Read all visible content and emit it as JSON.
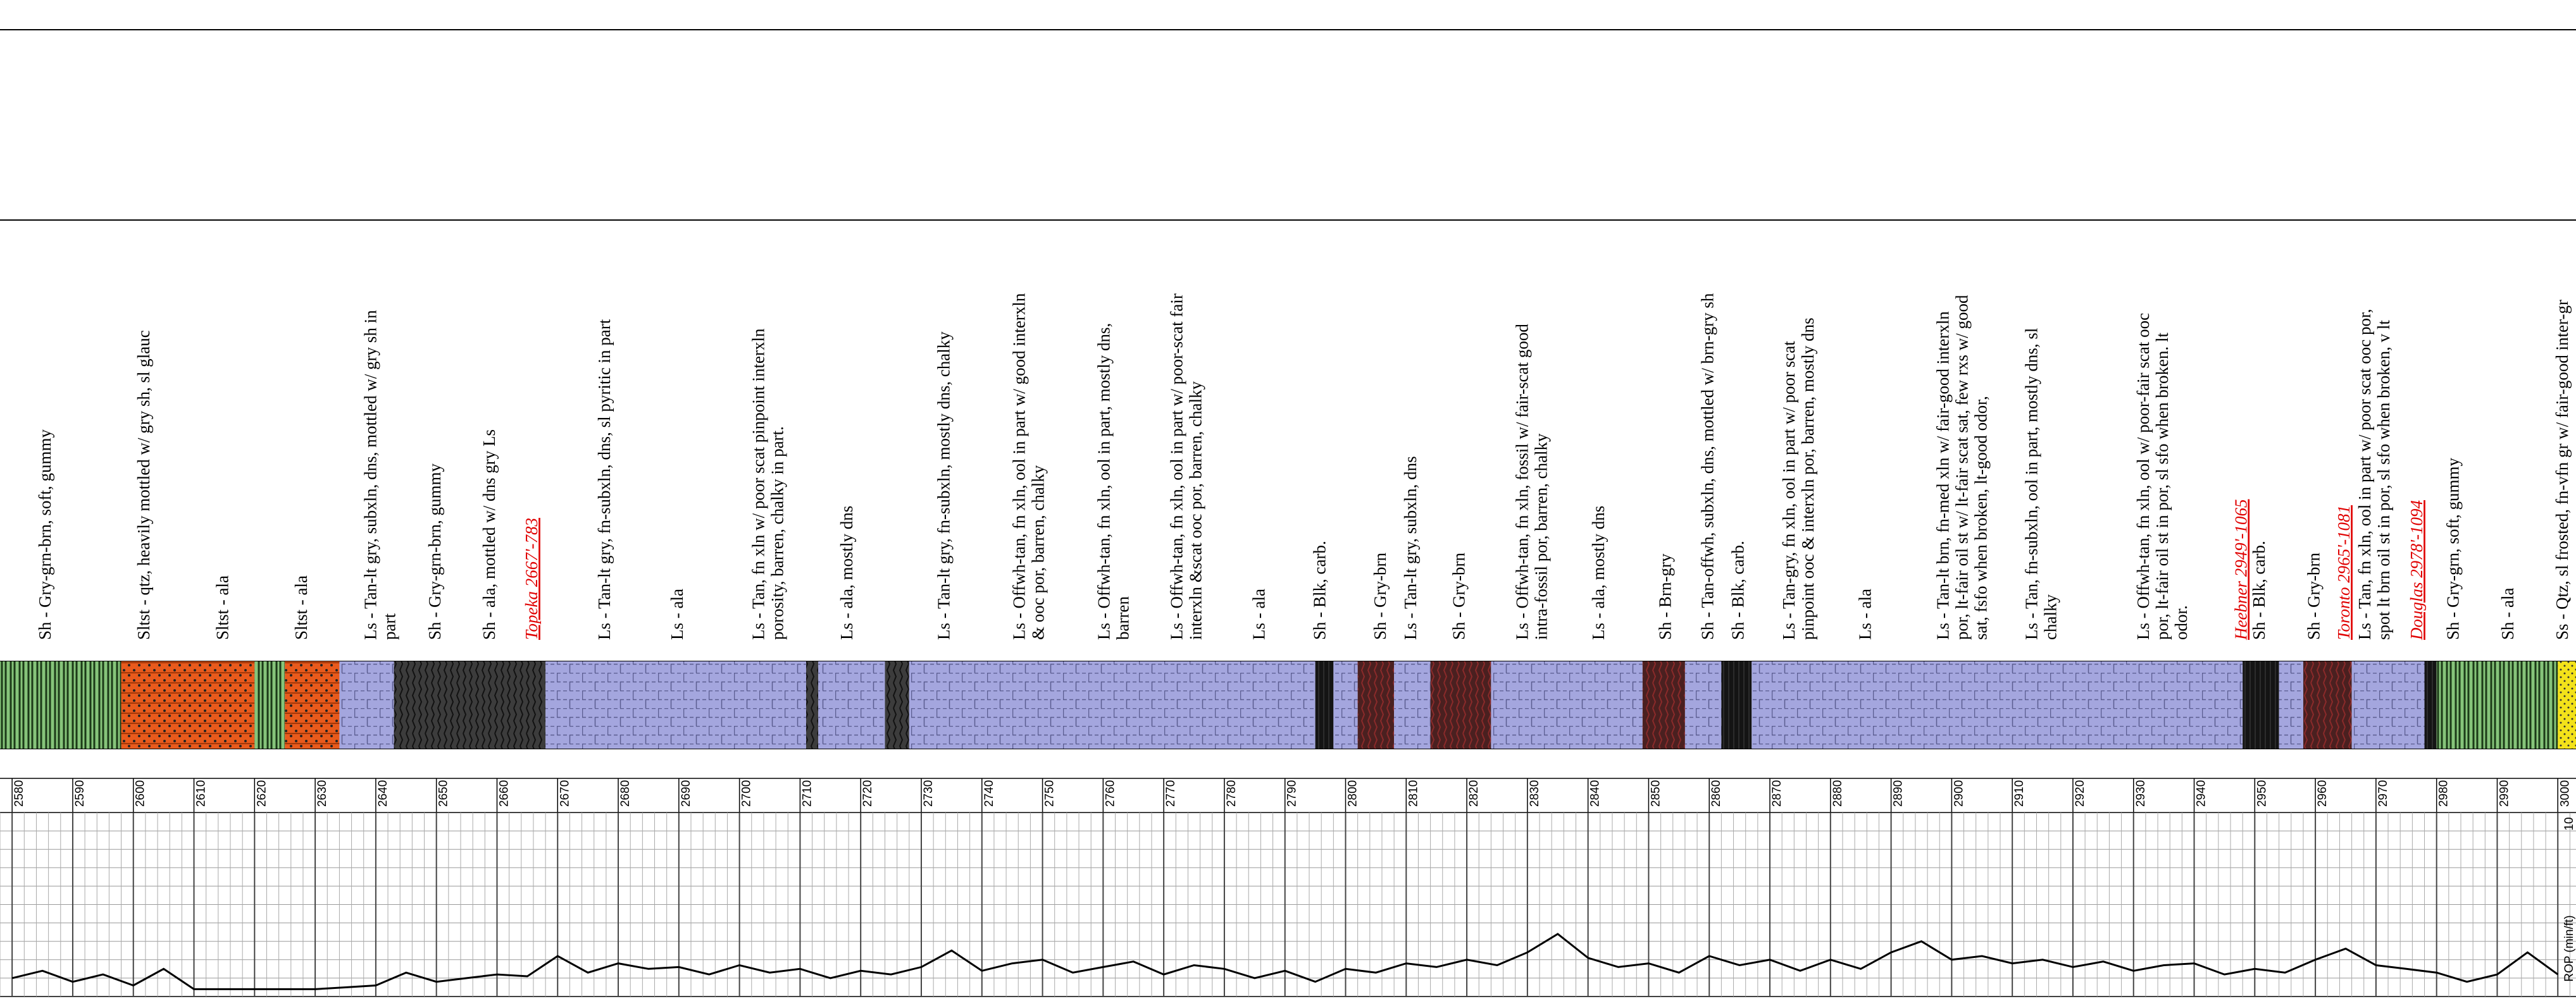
{
  "chart_data": {
    "type": "mud-log",
    "xlim": [
      2578,
      3003
    ],
    "xticks": [
      2580,
      2590,
      2600,
      2610,
      2620,
      2630,
      2640,
      2650,
      2660,
      2670,
      2680,
      2690,
      2700,
      2710,
      2720,
      2730,
      2740,
      2750,
      2760,
      2770,
      2780,
      2790,
      2800,
      2810,
      2820,
      2830,
      2840,
      2850,
      2860,
      2870,
      2880,
      2890,
      2900,
      2910,
      2920,
      2930,
      2940,
      2950,
      2960,
      2970,
      2980,
      2990,
      3000
    ],
    "lith_colors": {
      "ls": "#a4a6de",
      "sh": "#3c3c3c",
      "sh-grn": "#86c47a",
      "sh-brn": "#4a2020",
      "sh-blk": "#141414",
      "sltst": "#e85a1c",
      "ss": "#f3e21a"
    },
    "lithology": [
      {
        "from": 2578,
        "to": 2598,
        "lith": "sh-grn"
      },
      {
        "from": 2598,
        "to": 2620,
        "lith": "sltst"
      },
      {
        "from": 2620,
        "to": 2625,
        "lith": "sh-grn"
      },
      {
        "from": 2625,
        "to": 2634,
        "lith": "sltst"
      },
      {
        "from": 2634,
        "to": 2643,
        "lith": "ls"
      },
      {
        "from": 2643,
        "to": 2668,
        "lith": "sh"
      },
      {
        "from": 2668,
        "to": 2711,
        "lith": "ls"
      },
      {
        "from": 2711,
        "to": 2713,
        "lith": "sh"
      },
      {
        "from": 2713,
        "to": 2724,
        "lith": "ls"
      },
      {
        "from": 2724,
        "to": 2728,
        "lith": "sh"
      },
      {
        "from": 2728,
        "to": 2795,
        "lith": "ls"
      },
      {
        "from": 2795,
        "to": 2798,
        "lith": "sh-blk"
      },
      {
        "from": 2798,
        "to": 2802,
        "lith": "ls"
      },
      {
        "from": 2802,
        "to": 2808,
        "lith": "sh-brn"
      },
      {
        "from": 2808,
        "to": 2814,
        "lith": "ls"
      },
      {
        "from": 2814,
        "to": 2824,
        "lith": "sh-brn"
      },
      {
        "from": 2824,
        "to": 2849,
        "lith": "ls"
      },
      {
        "from": 2849,
        "to": 2856,
        "lith": "sh-brn"
      },
      {
        "from": 2856,
        "to": 2862,
        "lith": "ls"
      },
      {
        "from": 2862,
        "to": 2867,
        "lith": "sh-blk"
      },
      {
        "from": 2867,
        "to": 2948,
        "lith": "ls"
      },
      {
        "from": 2948,
        "to": 2954,
        "lith": "sh-blk"
      },
      {
        "from": 2954,
        "to": 2958,
        "lith": "ls"
      },
      {
        "from": 2958,
        "to": 2966,
        "lith": "sh-brn"
      },
      {
        "from": 2966,
        "to": 2978,
        "lith": "ls"
      },
      {
        "from": 2978,
        "to": 2980,
        "lith": "sh-blk"
      },
      {
        "from": 2980,
        "to": 3000,
        "lith": "sh-grn"
      },
      {
        "from": 3000,
        "to": 3003,
        "lith": "ss"
      }
    ],
    "descriptions": [
      {
        "depth": 2585.7,
        "lines": [
          "Sh - Gry-grn-brn, soft, gummy"
        ]
      },
      {
        "depth": 2602,
        "lines": [
          "Sltst - qtz, heavily mottled w/ gry sh, sl glauc"
        ]
      },
      {
        "depth": 2615,
        "lines": [
          "Sltst - ala"
        ]
      },
      {
        "depth": 2628,
        "lines": [
          "Sltst - ala"
        ]
      },
      {
        "depth": 2641,
        "lines": [
          "Ls - Tan-lt gry, subxln, dns, mottled w/ gry sh in",
          "part"
        ]
      },
      {
        "depth": 2650,
        "lines": [
          "Sh - Gry-grn-brn, gummy"
        ]
      },
      {
        "depth": 2659,
        "lines": [
          "Sh - ala, mottled w/ dns gry Ls"
        ]
      },
      {
        "depth": 2678,
        "lines": [
          "Ls - Tan-lt gry, fn-subxln, dns, sl pyritic in part"
        ]
      },
      {
        "depth": 2690,
        "lines": [
          "Ls - ala"
        ]
      },
      {
        "depth": 2705,
        "lines": [
          "Ls - Tan, fn xln w/ poor scat pinpoint interxln",
          "porosity, barren, chalky in part."
        ]
      },
      {
        "depth": 2718,
        "lines": [
          "Ls - ala, mostly dns"
        ]
      },
      {
        "depth": 2734,
        "lines": [
          "Ls - Tan-lt gry, fn-subxln, mostly dns, chalky"
        ]
      },
      {
        "depth": 2748,
        "lines": [
          "Ls - Offwh-tan, fn xln, ool in part w/ good interxln",
          "& ooc por, barren, chalky"
        ]
      },
      {
        "depth": 2762,
        "lines": [
          "Ls - Offwh-tan, fn xln, ool in part, mostly dns,",
          "barren"
        ]
      },
      {
        "depth": 2774,
        "lines": [
          "Ls - Offwh-tan, fn xln, ool in part w/ poor-scat fair",
          "interxln &scat ooc por, barren, chalky"
        ]
      },
      {
        "depth": 2786,
        "lines": [
          "Ls - ala"
        ]
      },
      {
        "depth": 2796,
        "lines": [
          "Sh - Blk, carb."
        ]
      },
      {
        "depth": 2806,
        "lines": [
          "Sh - Gry-brn"
        ]
      },
      {
        "depth": 2811,
        "lines": [
          "Ls - Tan-lt gry, subxln, dns"
        ]
      },
      {
        "depth": 2819,
        "lines": [
          "Sh - Gry-brn"
        ]
      },
      {
        "depth": 2831,
        "lines": [
          "Ls - Offwh-tan, fn xln, fossil w/ fair-scat good",
          "intra-fossil por, barren, chalky"
        ]
      },
      {
        "depth": 2842,
        "lines": [
          "Ls - ala, mostly dns"
        ]
      },
      {
        "depth": 2853,
        "lines": [
          "Sh - Brn-gry"
        ]
      },
      {
        "depth": 2860,
        "lines": [
          "Sh - Tan-offwh, subxln, dns, mottled w/ brn-gry sh"
        ]
      },
      {
        "depth": 2865,
        "lines": [
          "Sh - Blk, carb."
        ]
      },
      {
        "depth": 2875,
        "lines": [
          "Ls - Tan-gry, fn xln, ool in part w/ poor scat",
          "pinpoint ooc & interxln por, barren, mostly dns"
        ]
      },
      {
        "depth": 2886,
        "lines": [
          "Ls - ala"
        ]
      },
      {
        "depth": 2902,
        "lines": [
          "Ls - Tan-lt brn, fn-med xln w/ fair-good interxln",
          "por, lt-fair oil st w/ lt-fair scat sat, few rxs w/ good",
          "sat, fsfo when broken, lt-good odor,"
        ]
      },
      {
        "depth": 2915,
        "lines": [
          "Ls - Tan, fn-subxln, ool in part, mostly dns, sl",
          "chalky"
        ]
      },
      {
        "depth": 2935,
        "lines": [
          "Ls - Offwh-tan, fn xln, ool w/ poor-fair scat ooc",
          "por, lt-fair oil st in por, sl sfo when broken. lt",
          "odor."
        ]
      },
      {
        "depth": 2951,
        "lines": [
          "Sh - Blk, carb."
        ]
      },
      {
        "depth": 2960,
        "lines": [
          "Sh - Gry-brn"
        ]
      },
      {
        "depth": 2970,
        "lines": [
          "Ls - Tan, fn xln, ool in part w/ poor scat ooc por,",
          "spot lt brn oil st in por, sl sfo when broken, v lt"
        ]
      },
      {
        "depth": 2983,
        "lines": [
          "Sh - Gry-grn, soft, gummy"
        ]
      },
      {
        "depth": 2992,
        "lines": [
          "Sh - ala"
        ]
      },
      {
        "depth": 3001,
        "lines": [
          "Ss - Qtz, sl frosted, fn-vfn gr w/ fair-good inter-gr"
        ]
      }
    ],
    "formation_tops": [
      {
        "depth": 2666,
        "label": "Topeka 2667'-783"
      },
      {
        "depth": 2948,
        "label": "Heebner 2949'-1065"
      },
      {
        "depth": 2965,
        "label": "Toronto 2965'-1081"
      },
      {
        "depth": 2977,
        "label": "Douglas 2978'-1094"
      }
    ],
    "rop": {
      "name": "ROP (min/ft)",
      "color": "#000000",
      "ylim": [
        0,
        10
      ],
      "yticks": [
        10
      ],
      "x": [
        2580,
        2585,
        2590,
        2595,
        2600,
        2605,
        2610,
        2615,
        2620,
        2625,
        2630,
        2635,
        2640,
        2645,
        2650,
        2655,
        2660,
        2665,
        2670,
        2675,
        2680,
        2685,
        2690,
        2695,
        2700,
        2705,
        2710,
        2715,
        2720,
        2725,
        2730,
        2735,
        2740,
        2745,
        2750,
        2755,
        2760,
        2765,
        2770,
        2775,
        2780,
        2785,
        2790,
        2795,
        2800,
        2805,
        2810,
        2815,
        2820,
        2825,
        2830,
        2835,
        2840,
        2845,
        2850,
        2855,
        2860,
        2865,
        2870,
        2875,
        2880,
        2885,
        2890,
        2895,
        2900,
        2905,
        2910,
        2915,
        2920,
        2925,
        2930,
        2935,
        2940,
        2945,
        2950,
        2955,
        2960,
        2965,
        2970,
        2975,
        2980,
        2985,
        2990,
        2995,
        3000
      ],
      "values": [
        1.0,
        1.4,
        0.8,
        1.2,
        0.6,
        1.5,
        0.4,
        0.4,
        0.4,
        0.4,
        0.4,
        0.5,
        0.6,
        1.3,
        0.8,
        1.0,
        1.2,
        1.1,
        2.2,
        1.3,
        1.8,
        1.5,
        1.6,
        1.2,
        1.7,
        1.3,
        1.5,
        1.0,
        1.4,
        1.2,
        1.6,
        2.5,
        1.4,
        1.8,
        2.0,
        1.3,
        1.6,
        1.9,
        1.2,
        1.7,
        1.5,
        1.0,
        1.4,
        0.8,
        1.5,
        1.3,
        1.8,
        1.6,
        2.0,
        1.7,
        2.4,
        3.4,
        2.1,
        1.6,
        1.8,
        1.3,
        2.2,
        1.7,
        2.0,
        1.4,
        2.0,
        1.5,
        2.4,
        3.0,
        2.0,
        2.2,
        1.8,
        2.0,
        1.6,
        1.9,
        1.4,
        1.7,
        1.8,
        1.2,
        1.5,
        1.3,
        2.0,
        2.6,
        1.7,
        1.5,
        1.3,
        0.8,
        1.2,
        2.4,
        1.2
      ]
    }
  }
}
